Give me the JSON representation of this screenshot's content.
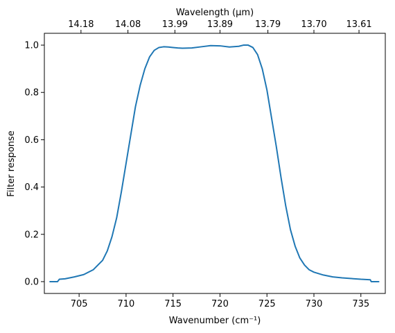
{
  "chart_data": {
    "type": "line",
    "title": "",
    "xlabel": "Wavenumber (cm⁻¹)",
    "ylabel": "Filter response",
    "top_xlabel": "Wavelength (μm)",
    "xlim": [
      701.3,
      737.6
    ],
    "ylim": [
      -0.05,
      1.05
    ],
    "grid": false,
    "x_ticks": [
      705,
      710,
      715,
      720,
      725,
      730,
      735
    ],
    "y_ticks": [
      0.0,
      0.2,
      0.4,
      0.6,
      0.8,
      1.0
    ],
    "y_tick_labels": [
      "0.0",
      "0.2",
      "0.4",
      "0.6",
      "0.8",
      "1.0"
    ],
    "top_ticks": [
      {
        "wavenumber": 705.2,
        "label": "14.18"
      },
      {
        "wavenumber": 710.2,
        "label": "14.08"
      },
      {
        "wavenumber": 715.2,
        "label": "13.99"
      },
      {
        "wavenumber": 720.0,
        "label": "13.89"
      },
      {
        "wavenumber": 725.1,
        "label": "13.79"
      },
      {
        "wavenumber": 730.0,
        "label": "13.70"
      },
      {
        "wavenumber": 734.8,
        "label": "13.61"
      }
    ],
    "series": [
      {
        "color": "#1f77b4",
        "x": [
          701.9,
          702.7,
          702.9,
          703.5,
          704.5,
          705.5,
          706.5,
          707.5,
          708.0,
          708.5,
          709.0,
          709.5,
          710.0,
          710.5,
          711.0,
          711.5,
          712.0,
          712.5,
          713.0,
          713.5,
          714.0,
          714.5,
          715.0,
          715.5,
          716.0,
          717.0,
          718.0,
          719.0,
          720.0,
          721.0,
          722.0,
          722.5,
          723.0,
          723.5,
          724.0,
          724.5,
          725.0,
          725.5,
          726.0,
          726.5,
          727.0,
          727.5,
          728.0,
          728.5,
          729.0,
          729.5,
          730.0,
          731.0,
          732.0,
          733.0,
          734.0,
          735.0,
          736.0,
          736.1,
          736.3,
          736.9
        ],
        "y": [
          0.0,
          0.0,
          0.01,
          0.012,
          0.02,
          0.03,
          0.05,
          0.09,
          0.13,
          0.19,
          0.27,
          0.38,
          0.5,
          0.62,
          0.74,
          0.83,
          0.9,
          0.95,
          0.978,
          0.99,
          0.993,
          0.992,
          0.99,
          0.988,
          0.987,
          0.988,
          0.993,
          0.998,
          0.997,
          0.992,
          0.995,
          1.0,
          1.0,
          0.99,
          0.96,
          0.9,
          0.81,
          0.69,
          0.57,
          0.44,
          0.32,
          0.22,
          0.15,
          0.1,
          0.07,
          0.05,
          0.04,
          0.028,
          0.02,
          0.016,
          0.013,
          0.01,
          0.008,
          0.0,
          0.0,
          0.0
        ]
      }
    ]
  }
}
